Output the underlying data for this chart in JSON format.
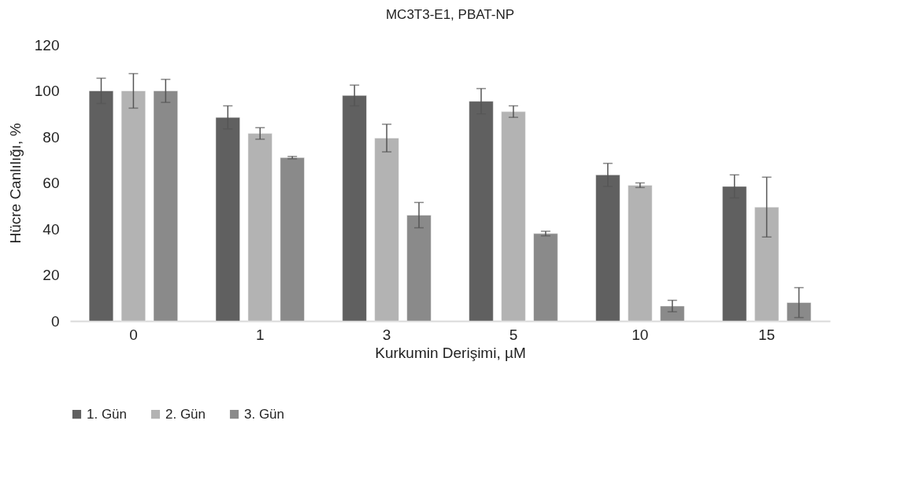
{
  "chart_data": {
    "type": "bar",
    "title": "MC3T3-E1, PBAT-NP",
    "xlabel": "Kurkumin Derişimi, µM",
    "ylabel": "Hücre Canlılığı, %",
    "categories": [
      "0",
      "1",
      "3",
      "5",
      "10",
      "15"
    ],
    "series": [
      {
        "name": "1. Gün",
        "color": "#606060",
        "values": [
          100,
          88.5,
          98,
          95.5,
          63.5,
          58.5
        ],
        "errors": [
          5.5,
          5,
          4.5,
          5.5,
          5,
          5
        ]
      },
      {
        "name": "2. Gün",
        "color": "#b3b3b3",
        "values": [
          100,
          81.5,
          79.5,
          91,
          59,
          49.5
        ],
        "errors": [
          7.5,
          2.5,
          6,
          2.5,
          1,
          13
        ]
      },
      {
        "name": "3. Gün",
        "color": "#8a8a8a",
        "values": [
          100,
          71,
          46,
          38,
          6.5,
          8
        ],
        "errors": [
          5,
          0.5,
          5.5,
          1,
          2.5,
          6.5
        ]
      }
    ],
    "ylim": [
      0,
      120
    ],
    "yticks": [
      0,
      20,
      40,
      60,
      80,
      100,
      120
    ],
    "grid": false,
    "legend": "bottom"
  }
}
